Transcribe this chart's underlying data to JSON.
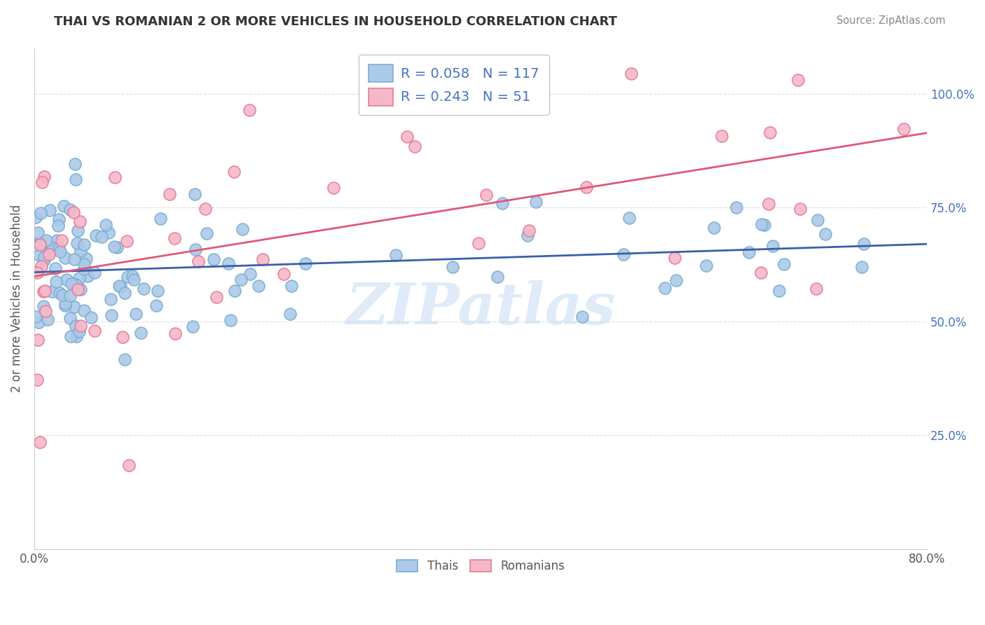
{
  "title": "THAI VS ROMANIAN 2 OR MORE VEHICLES IN HOUSEHOLD CORRELATION CHART",
  "source": "Source: ZipAtlas.com",
  "ylabel": "2 or more Vehicles in Household",
  "xlim": [
    0.0,
    0.8
  ],
  "ylim": [
    0.0,
    1.1
  ],
  "xtick_vals": [
    0.0,
    0.8
  ],
  "xtick_labels": [
    "0.0%",
    "80.0%"
  ],
  "ytick_vals": [
    0.25,
    0.5,
    0.75,
    1.0
  ],
  "ytick_labels": [
    "25.0%",
    "50.0%",
    "75.0%",
    "100.0%"
  ],
  "thai_color": "#adc9e8",
  "romanian_color": "#f5b8c8",
  "thai_edge": "#7aafd4",
  "romanian_edge": "#e87a96",
  "line_thai_color": "#3a5fa8",
  "line_romanian_color": "#e05878",
  "R_thai": 0.058,
  "N_thai": 117,
  "R_romanian": 0.243,
  "N_romanian": 51,
  "legend_labels": [
    "Thais",
    "Romanians"
  ],
  "watermark": "ZIPatlas",
  "background_color": "#ffffff",
  "grid_color": "#dddddd",
  "title_color": "#333333",
  "source_color": "#888888",
  "ylabel_color": "#555555",
  "tick_color": "#555555",
  "right_tick_color": "#4472c4",
  "legend_text_color": "#4472c4",
  "marker_size": 150,
  "marker_lw": 1.2,
  "line_width": 2.0
}
